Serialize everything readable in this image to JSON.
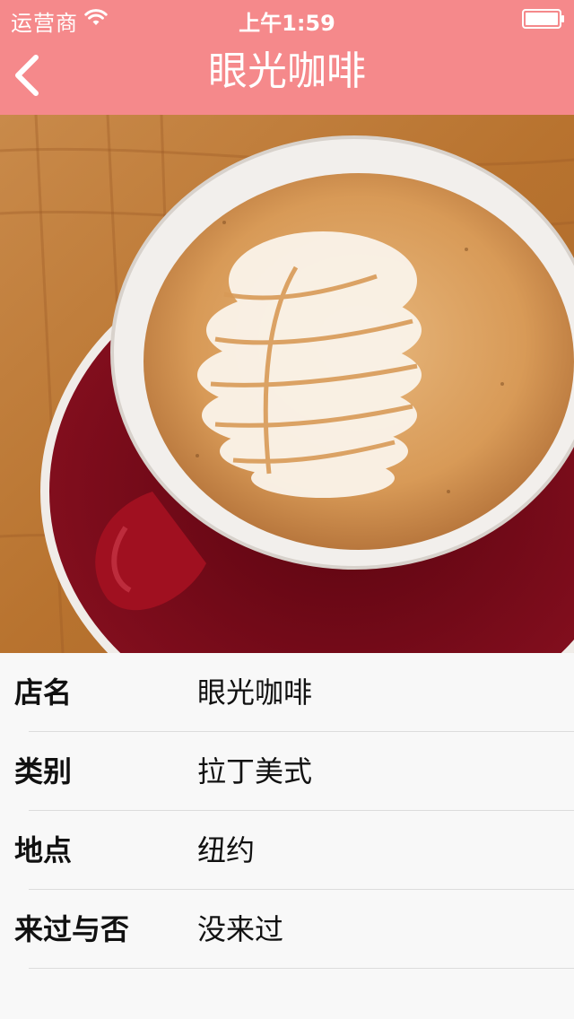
{
  "status_bar": {
    "carrier": "运营商",
    "time": "上午1:59"
  },
  "nav": {
    "title": "眼光咖啡"
  },
  "photo": {
    "icon": "latte-art-photo"
  },
  "details": [
    {
      "label": "店名",
      "value": "眼光咖啡"
    },
    {
      "label": "类别",
      "value": "拉丁美式"
    },
    {
      "label": "地点",
      "value": "纽约"
    },
    {
      "label": "来过与否",
      "value": "没来过"
    }
  ],
  "colors": {
    "accent": "#f5898b",
    "background": "#f8f8f8"
  }
}
